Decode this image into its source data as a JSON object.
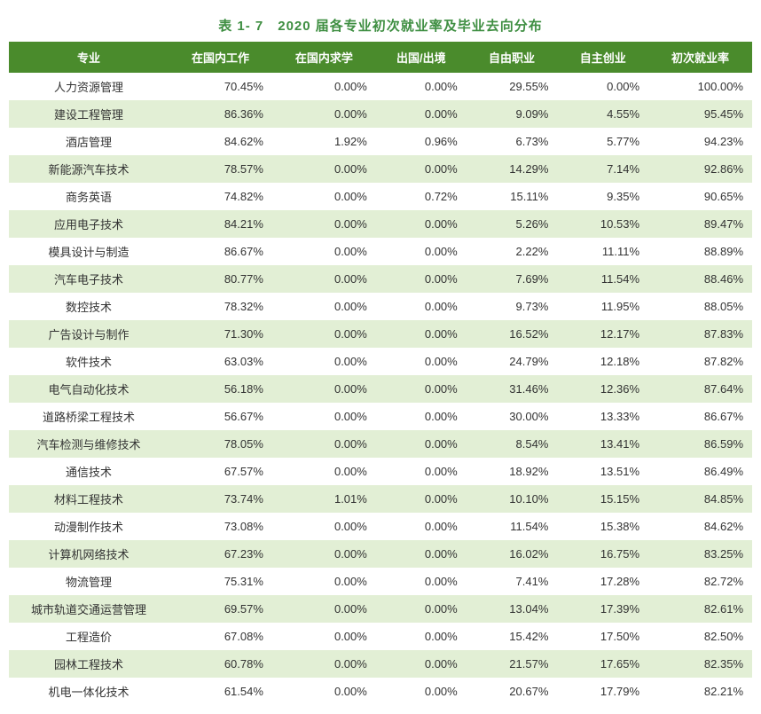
{
  "title": "表 1- 7　2020 届各专业初次就业率及毕业去向分布",
  "table": {
    "type": "table",
    "header_bg": "#4a8b2c",
    "header_color": "#ffffff",
    "row_odd_bg": "#ffffff",
    "row_even_bg": "#e2efd5",
    "title_color": "#3e8e41",
    "columns": [
      "专业",
      "在国内工作",
      "在国内求学",
      "出国/出境",
      "自由职业",
      "自主创业",
      "初次就业率"
    ],
    "rows": [
      [
        "人力资源管理",
        "70.45%",
        "0.00%",
        "0.00%",
        "29.55%",
        "0.00%",
        "100.00%"
      ],
      [
        "建设工程管理",
        "86.36%",
        "0.00%",
        "0.00%",
        "9.09%",
        "4.55%",
        "95.45%"
      ],
      [
        "酒店管理",
        "84.62%",
        "1.92%",
        "0.96%",
        "6.73%",
        "5.77%",
        "94.23%"
      ],
      [
        "新能源汽车技术",
        "78.57%",
        "0.00%",
        "0.00%",
        "14.29%",
        "7.14%",
        "92.86%"
      ],
      [
        "商务英语",
        "74.82%",
        "0.00%",
        "0.72%",
        "15.11%",
        "9.35%",
        "90.65%"
      ],
      [
        "应用电子技术",
        "84.21%",
        "0.00%",
        "0.00%",
        "5.26%",
        "10.53%",
        "89.47%"
      ],
      [
        "模具设计与制造",
        "86.67%",
        "0.00%",
        "0.00%",
        "2.22%",
        "11.11%",
        "88.89%"
      ],
      [
        "汽车电子技术",
        "80.77%",
        "0.00%",
        "0.00%",
        "7.69%",
        "11.54%",
        "88.46%"
      ],
      [
        "数控技术",
        "78.32%",
        "0.00%",
        "0.00%",
        "9.73%",
        "11.95%",
        "88.05%"
      ],
      [
        "广告设计与制作",
        "71.30%",
        "0.00%",
        "0.00%",
        "16.52%",
        "12.17%",
        "87.83%"
      ],
      [
        "软件技术",
        "63.03%",
        "0.00%",
        "0.00%",
        "24.79%",
        "12.18%",
        "87.82%"
      ],
      [
        "电气自动化技术",
        "56.18%",
        "0.00%",
        "0.00%",
        "31.46%",
        "12.36%",
        "87.64%"
      ],
      [
        "道路桥梁工程技术",
        "56.67%",
        "0.00%",
        "0.00%",
        "30.00%",
        "13.33%",
        "86.67%"
      ],
      [
        "汽车检测与维修技术",
        "78.05%",
        "0.00%",
        "0.00%",
        "8.54%",
        "13.41%",
        "86.59%"
      ],
      [
        "通信技术",
        "67.57%",
        "0.00%",
        "0.00%",
        "18.92%",
        "13.51%",
        "86.49%"
      ],
      [
        "材料工程技术",
        "73.74%",
        "1.01%",
        "0.00%",
        "10.10%",
        "15.15%",
        "84.85%"
      ],
      [
        "动漫制作技术",
        "73.08%",
        "0.00%",
        "0.00%",
        "11.54%",
        "15.38%",
        "84.62%"
      ],
      [
        "计算机网络技术",
        "67.23%",
        "0.00%",
        "0.00%",
        "16.02%",
        "16.75%",
        "83.25%"
      ],
      [
        "物流管理",
        "75.31%",
        "0.00%",
        "0.00%",
        "7.41%",
        "17.28%",
        "82.72%"
      ],
      [
        "城市轨道交通运营管理",
        "69.57%",
        "0.00%",
        "0.00%",
        "13.04%",
        "17.39%",
        "82.61%"
      ],
      [
        "工程造价",
        "67.08%",
        "0.00%",
        "0.00%",
        "15.42%",
        "17.50%",
        "82.50%"
      ],
      [
        "园林工程技术",
        "60.78%",
        "0.00%",
        "0.00%",
        "21.57%",
        "17.65%",
        "82.35%"
      ],
      [
        "机电一体化技术",
        "61.54%",
        "0.00%",
        "0.00%",
        "20.67%",
        "17.79%",
        "82.21%"
      ]
    ]
  }
}
